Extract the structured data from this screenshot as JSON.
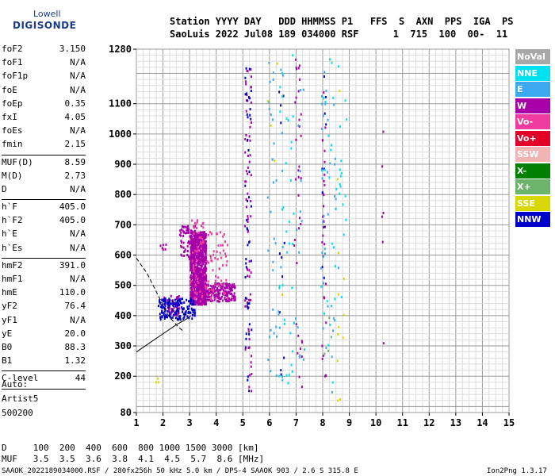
{
  "logo": {
    "top": "Lowell",
    "bottom": "DIGISONDE"
  },
  "header": {
    "line1": "Station YYYY DAY   DDD HHMMSS P1   FFS  S  AXN  PPS  IGA  PS",
    "line2": "SaoLuis 2022 Jul08 189 034000 RSF      1  715  100  00-  11"
  },
  "params_groups": [
    [
      {
        "label": "foF2",
        "value": "3.150"
      },
      {
        "label": "foF1",
        "value": "N/A"
      },
      {
        "label": "foF1p",
        "value": "N/A"
      },
      {
        "label": "foE",
        "value": "N/A"
      },
      {
        "label": "foEp",
        "value": "0.35"
      },
      {
        "label": "fxI",
        "value": "4.05"
      },
      {
        "label": "foEs",
        "value": "N/A"
      },
      {
        "label": "fmin",
        "value": "2.15"
      }
    ],
    [
      {
        "label": "MUF(D)",
        "value": "8.59"
      },
      {
        "label": "M(D)",
        "value": "2.73"
      },
      {
        "label": "D",
        "value": "N/A"
      }
    ],
    [
      {
        "label": "h`F",
        "value": "405.0"
      },
      {
        "label": "h`F2",
        "value": "405.0"
      },
      {
        "label": "h`E",
        "value": "N/A"
      },
      {
        "label": "h`Es",
        "value": "N/A"
      }
    ],
    [
      {
        "label": "hmF2",
        "value": "391.0"
      },
      {
        "label": "hmF1",
        "value": "N/A"
      },
      {
        "label": "hmE",
        "value": "110.0"
      },
      {
        "label": "yF2",
        "value": "76.4"
      },
      {
        "label": "yF1",
        "value": "N/A"
      },
      {
        "label": "yE",
        "value": "20.0"
      },
      {
        "label": "B0",
        "value": "88.3"
      },
      {
        "label": "B1",
        "value": "1.32"
      }
    ],
    [
      {
        "label": "C-level",
        "value": "44"
      }
    ]
  ],
  "auto": [
    "Auto:",
    "Artist5",
    "500200"
  ],
  "footer": {
    "d_row": "D     100  200  400  600  800 1000 1500 3000 [km]",
    "muf_row": "MUF   3.5  3.5  3.6  3.8  4.1  4.5  5.7  8.6 [MHz]",
    "info": "SAAOK_2022189034000.RSF / 280fx256h 50 kHz 5.0 km / DPS-4 SAAOK 903 / 2.6 S 315.8 E",
    "version": "Ion2Png 1.3.17"
  },
  "legend": [
    {
      "label": "NoVal",
      "color": "#a8a8a8"
    },
    {
      "label": "NNE",
      "color": "#00e0f0"
    },
    {
      "label": "E",
      "color": "#3ca8f0"
    },
    {
      "label": "W",
      "color": "#a800a8"
    },
    {
      "label": "Vo-",
      "color": "#f03ca0"
    },
    {
      "label": "Vo+",
      "color": "#e00028"
    },
    {
      "label": "SSW",
      "color": "#f0b4b4"
    },
    {
      "label": "X-",
      "color": "#008000"
    },
    {
      "label": "X+",
      "color": "#6cb46c"
    },
    {
      "label": "SSE",
      "color": "#d8d800"
    },
    {
      "label": "NNW",
      "color": "#0000c8"
    }
  ],
  "chart_data": {
    "type": "scatter",
    "title": "",
    "xlabel": "",
    "ylabel": "",
    "xlim": [
      1,
      15
    ],
    "ylim": [
      80,
      1280
    ],
    "x_ticks": [
      1,
      2,
      3,
      4,
      5,
      6,
      7,
      8,
      9,
      10,
      11,
      12,
      13,
      14,
      15
    ],
    "y_ticks": [
      80,
      200,
      300,
      400,
      500,
      600,
      700,
      800,
      900,
      1000,
      1100,
      1280
    ],
    "grid": true,
    "legend_position": "right",
    "series": [
      {
        "name": "W",
        "color": "#a800a8",
        "clusters": [
          {
            "x": [
              3.0,
              3.6
            ],
            "y": [
              440,
              680
            ],
            "n": 900
          },
          {
            "x": [
              3.3,
              4.7
            ],
            "y": [
              450,
              510
            ],
            "n": 250
          },
          {
            "x": [
              2.6,
              3.2
            ],
            "y": [
              590,
              700
            ],
            "n": 80
          },
          {
            "x": [
              2.0,
              2.6
            ],
            "y": [
              400,
              470
            ],
            "n": 60
          },
          {
            "x": [
              1.8,
              2.1
            ],
            "y": [
              620,
              640
            ],
            "n": 6
          },
          {
            "x": [
              5.05,
              5.3
            ],
            "y": [
              150,
              1260
            ],
            "n": 70
          },
          {
            "x": [
              6.9,
              7.2
            ],
            "y": [
              150,
              1260
            ],
            "n": 35
          },
          {
            "x": [
              7.95,
              8.1
            ],
            "y": [
              200,
              1250
            ],
            "n": 30
          },
          {
            "x": [
              10.2,
              10.3
            ],
            "y": [
              310,
              1120
            ],
            "n": 6
          }
        ]
      },
      {
        "name": "NNW",
        "color": "#0000c8",
        "clusters": [
          {
            "x": [
              1.8,
              3.2
            ],
            "y": [
              390,
              460
            ],
            "n": 150
          },
          {
            "x": [
              5.05,
              5.3
            ],
            "y": [
              150,
              1260
            ],
            "n": 45
          },
          {
            "x": [
              6.3,
              6.6
            ],
            "y": [
              180,
              1200
            ],
            "n": 12
          },
          {
            "x": [
              7.95,
              8.1
            ],
            "y": [
              250,
              1200
            ],
            "n": 10
          }
        ]
      },
      {
        "name": "Vo-",
        "color": "#f03ca0",
        "clusters": [
          {
            "x": [
              3.0,
              4.4
            ],
            "y": [
              450,
              680
            ],
            "n": 100
          },
          {
            "x": [
              3.0,
              3.5
            ],
            "y": [
              690,
              720
            ],
            "n": 12
          }
        ]
      },
      {
        "name": "NNE",
        "color": "#00e0f0",
        "clusters": [
          {
            "x": [
              6.3,
              6.9
            ],
            "y": [
              150,
              1270
            ],
            "n": 35
          },
          {
            "x": [
              7.9,
              8.7
            ],
            "y": [
              150,
              1270
            ],
            "n": 30
          },
          {
            "x": [
              8.6,
              8.9
            ],
            "y": [
              450,
              1150
            ],
            "n": 10
          }
        ]
      },
      {
        "name": "E",
        "color": "#3ca8f0",
        "clusters": [
          {
            "x": [
              5.9,
              6.5
            ],
            "y": [
              150,
              1270
            ],
            "n": 40
          },
          {
            "x": [
              7.9,
              8.6
            ],
            "y": [
              150,
              1270
            ],
            "n": 35
          },
          {
            "x": [
              6.9,
              7.3
            ],
            "y": [
              150,
              1250
            ],
            "n": 15
          }
        ]
      },
      {
        "name": "SSE",
        "color": "#d8d800",
        "clusters": [
          {
            "x": [
              8.5,
              8.9
            ],
            "y": [
              120,
              1150
            ],
            "n": 12
          },
          {
            "x": [
              5.9,
              6.5
            ],
            "y": [
              150,
              1250
            ],
            "n": 5
          },
          {
            "x": [
              1.5,
              1.8
            ],
            "y": [
              180,
              200
            ],
            "n": 3
          }
        ]
      },
      {
        "name": "X+",
        "color": "#6cb46c",
        "clusters": [
          {
            "x": [
              8.0,
              8.3
            ],
            "y": [
              200,
              450
            ],
            "n": 4
          }
        ]
      }
    ],
    "curves": [
      {
        "style": "dashed",
        "x": [
          1.0,
          1.4,
          1.8,
          2.2,
          2.6,
          2.75
        ],
        "y": [
          590,
          540,
          470,
          400,
          360,
          350
        ]
      },
      {
        "style": "solid",
        "x": [
          1.0,
          1.5,
          2.0,
          2.5,
          2.9,
          3.05
        ],
        "y": [
          280,
          310,
          340,
          370,
          390,
          400
        ]
      }
    ]
  }
}
